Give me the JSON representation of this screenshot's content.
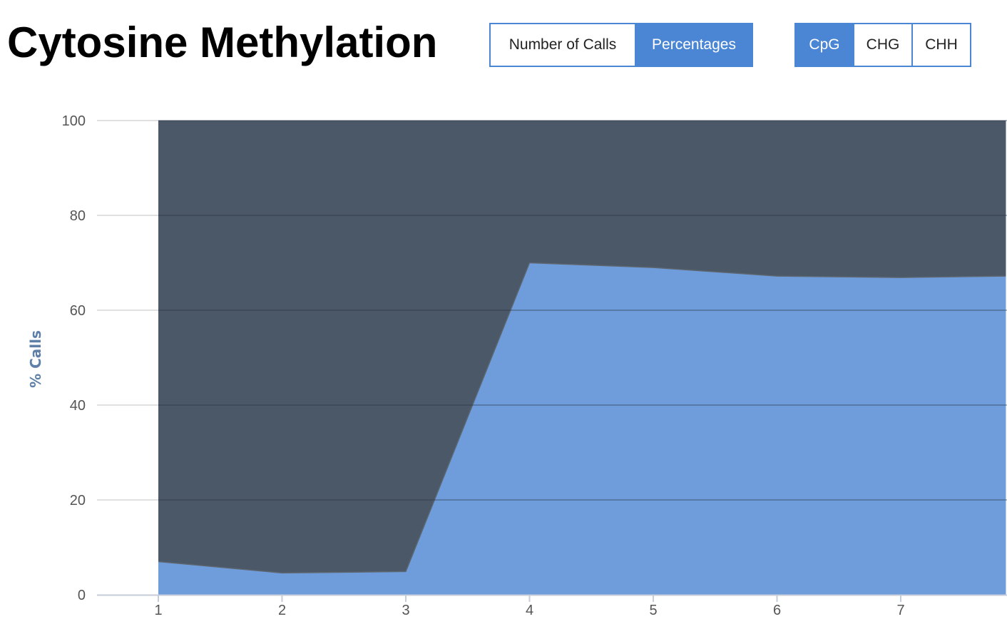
{
  "header": {
    "title": "Cytosine Methylation"
  },
  "mode_buttons": [
    {
      "label": "Number of Calls",
      "active": false
    },
    {
      "label": "Percentages",
      "active": true
    }
  ],
  "context_buttons": [
    {
      "label": "CpG",
      "active": true
    },
    {
      "label": "CHG",
      "active": false
    },
    {
      "label": "CHH",
      "active": false
    }
  ],
  "colors": {
    "accent": "#4a86d4",
    "methylated": "#6f9ddc",
    "unmethylated": "#4b5867"
  },
  "chart_data": {
    "type": "area",
    "stacked": true,
    "normalized_percent": true,
    "x": [
      1,
      2,
      3,
      4,
      5,
      6,
      7,
      7.85
    ],
    "x_ticks": [
      1,
      2,
      3,
      4,
      5,
      6,
      7
    ],
    "xlim": [
      0.5,
      7.85
    ],
    "ylim": [
      0,
      100
    ],
    "y_ticks": [
      0,
      20,
      40,
      60,
      80,
      100
    ],
    "ylabel": "% Calls",
    "xlabel": "",
    "grid": true,
    "series": [
      {
        "values": [
          7.0,
          4.6,
          4.9,
          70.0,
          69.0,
          67.2,
          66.9,
          67.2
        ],
        "color": "#6f9ddc"
      },
      {
        "values": [
          93.0,
          95.4,
          95.1,
          30.0,
          31.0,
          32.8,
          33.1,
          32.8
        ],
        "color": "#4b5867"
      }
    ]
  }
}
